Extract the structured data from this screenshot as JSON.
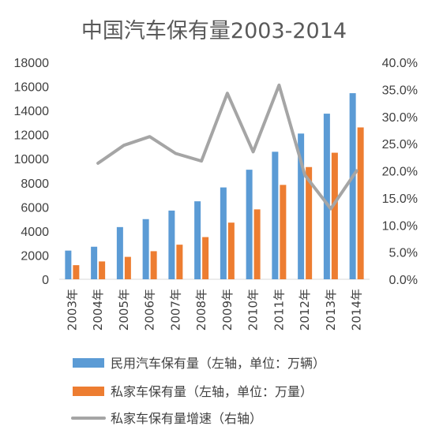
{
  "chart_data": {
    "type": "bar",
    "title": "中国汽车保有量2003-2014",
    "categories": [
      "2003年",
      "2004年",
      "2005年",
      "2006年",
      "2007年",
      "2008年",
      "2009年",
      "2010年",
      "2011年",
      "2012年",
      "2013年",
      "2014年"
    ],
    "y_left": {
      "min": 0,
      "max": 18000,
      "ticks": [
        "0",
        "2000",
        "4000",
        "6000",
        "8000",
        "10000",
        "12000",
        "14000",
        "16000",
        "18000"
      ]
    },
    "y_right": {
      "min": 0,
      "max": 40,
      "ticks": [
        "0.0%",
        "5.0%",
        "10.0%",
        "15.0%",
        "20.0%",
        "25.0%",
        "30.0%",
        "35.0%",
        "40.0%"
      ]
    },
    "series": [
      {
        "name": "民用汽车保有量（左轴，单位：万辆）",
        "type": "bar",
        "axis": "left",
        "color": "#5b9bd5",
        "values": [
          2380,
          2700,
          4330,
          4990,
          5700,
          6470,
          7620,
          9090,
          10580,
          12090,
          13740,
          15440
        ]
      },
      {
        "name": "私家车保有量（左轴，单位：万量）",
        "type": "bar",
        "axis": "left",
        "color": "#ed7d31",
        "values": [
          1170,
          1480,
          1860,
          2330,
          2870,
          3500,
          4700,
          5800,
          7830,
          9310,
          10500,
          12600
        ]
      },
      {
        "name": "私家车保有量增速（右轴）",
        "type": "line",
        "axis": "right",
        "color": "#a5a5a5",
        "values": [
          null,
          21.4,
          24.7,
          26.3,
          23.2,
          21.8,
          34.3,
          23.5,
          35.8,
          19.2,
          13.0,
          20.0
        ]
      }
    ],
    "grid": false,
    "legend_position": "bottom"
  }
}
